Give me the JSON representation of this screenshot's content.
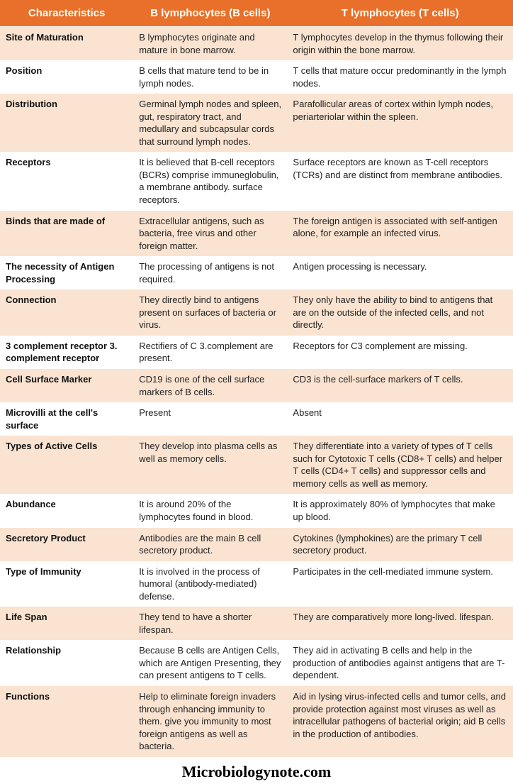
{
  "colors": {
    "header_bg": "#e8702a",
    "header_text": "#ffffff",
    "row_odd_bg": "#fae3d0",
    "row_even_bg": "#ffffff",
    "text": "#222222",
    "char_text": "#111111"
  },
  "fonts": {
    "body_size": 13,
    "header_size": 15,
    "footer_size": 22
  },
  "headers": {
    "col1": "Characteristics",
    "col2": "B lymphocytes (B cells)",
    "col3": "T lymphocytes (T cells)"
  },
  "rows": [
    {
      "char": "Site of Maturation",
      "b": "B lymphocytes originate and mature in bone marrow.",
      "t": "T lymphocytes develop in the thymus following their origin within the bone marrow."
    },
    {
      "char": "Position",
      "b": "B cells that mature tend to be in lymph nodes.",
      "t": "T cells that mature occur predominantly in the lymph nodes."
    },
    {
      "char": "Distribution",
      "b": "Germinal lymph nodes and spleen, gut, respiratory tract, and medullary and subcapsular cords that surround lymph nodes.",
      "t": "Parafollicular areas of cortex within lymph nodes, periarteriolar within the spleen."
    },
    {
      "char": "Receptors",
      "b": "It is believed that B-cell receptors (BCRs) comprise immuneglobulin, a membrane antibody. surface receptors.",
      "t": "Surface receptors are known as T-cell receptors (TCRs) and are distinct from membrane antibodies."
    },
    {
      "char": "Binds that are made of",
      "b": "Extracellular antigens, such as bacteria, free virus and other foreign matter.",
      "t": "The foreign antigen is associated with self-antigen alone, for example an infected virus."
    },
    {
      "char": "The necessity of Antigen Processing",
      "b": "The processing of antigens is not required.",
      "t": "Antigen processing is necessary."
    },
    {
      "char": "Connection",
      "b": "They directly bind to antigens present on surfaces of bacteria or virus.",
      "t": "They only have the ability to bind to antigens that are on the outside of the infected cells, and not directly."
    },
    {
      "char": "3 complement receptor 3. complement receptor",
      "b": "Rectifiers of C 3.complement are present.",
      "t": "Receptors for C3 complement are missing."
    },
    {
      "char": "Cell Surface Marker",
      "b": "CD19 is one of the cell surface markers of B cells.",
      "t": "CD3 is the cell-surface markers of T cells."
    },
    {
      "char": "Microvilli at the cell's surface",
      "b": "Present",
      "t": "Absent"
    },
    {
      "char": "Types of Active Cells",
      "b": "They develop into plasma cells as well as memory cells.",
      "t": "They differentiate into a variety of types of T cells such for Cytotoxic T cells (CD8+ T cells) and helper T cells (CD4+ T cells) and suppressor cells and memory cells as well as memory."
    },
    {
      "char": "Abundance",
      "b": "It is around 20% of the lymphocytes found in blood.",
      "t": "It is approximately 80% of lymphocytes that make up blood."
    },
    {
      "char": "Secretory Product",
      "b": "Antibodies are the main B cell secretory product.",
      "t": "Cytokines (lymphokines) are the primary T cell secretory product."
    },
    {
      "char": "Type of Immunity",
      "b": "It is involved in the process of humoral (antibody-mediated) defense.",
      "t": "Participates in the cell-mediated immune system."
    },
    {
      "char": "Life Span",
      "b": "They tend to have a shorter lifespan.",
      "t": "They are comparatively more long-lived. lifespan."
    },
    {
      "char": "Relationship",
      "b": "Because B cells are Antigen Cells, which are Antigen Presenting, they can present antigens to T cells.",
      "t": "They aid in activating B cells and help in the production of antibodies against antigens that are T-dependent."
    },
    {
      "char": "Functions",
      "b": "Help to eliminate foreign invaders through enhancing immunity to them. give you immunity to most foreign antigens as well as bacteria.",
      "t": "Aid in lysing virus-infected cells and tumor cells, and provide protection against most viruses as well as intracellular pathogens of bacterial origin; aid B cells in the production of antibodies."
    }
  ],
  "footer": "Microbiologynote.com"
}
